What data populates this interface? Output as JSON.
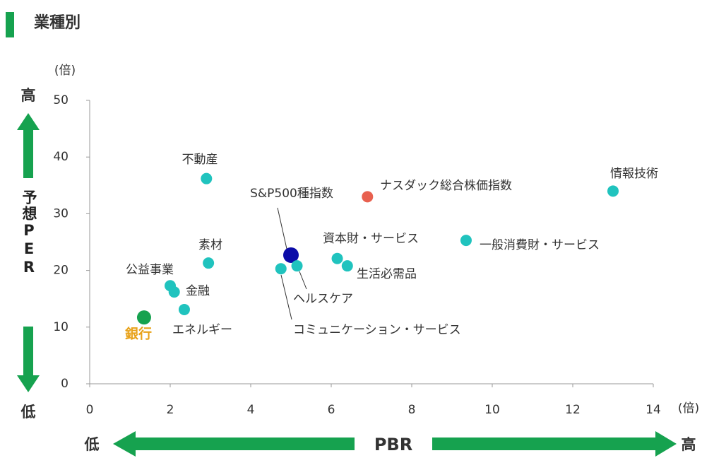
{
  "title": "業種別",
  "chart_data": {
    "type": "scatter",
    "y_unit": "(倍)",
    "x_unit": "(倍)",
    "y_label": "予想PER",
    "x_label": "PBR",
    "y_high": "高",
    "y_low": "低",
    "x_low": "低",
    "x_high": "高",
    "xlim": [
      0,
      14
    ],
    "xticks": [
      0,
      2,
      4,
      6,
      8,
      10,
      12,
      14
    ],
    "ylim": [
      0,
      50
    ],
    "yticks": [
      0,
      10,
      20,
      30,
      40,
      50
    ],
    "points": [
      {
        "label": "情報技術",
        "x": 13.0,
        "y": 34.0,
        "color": "#20c3be"
      },
      {
        "label": "ナスダック総合株価指数",
        "x": 6.9,
        "y": 33.0,
        "color": "#e8604f"
      },
      {
        "label": "不動産",
        "x": 2.9,
        "y": 36.2,
        "color": "#20c3be"
      },
      {
        "label": "S&P500種指数",
        "x": 5.0,
        "y": 22.7,
        "color": "#0b0ba8"
      },
      {
        "label": "一般消費財・サービス",
        "x": 9.35,
        "y": 25.3,
        "color": "#20c3be"
      },
      {
        "label": "資本財・サービス",
        "x": 6.15,
        "y": 22.1,
        "color": "#20c3be"
      },
      {
        "label": "生活必需品",
        "x": 6.4,
        "y": 20.8,
        "color": "#20c3be"
      },
      {
        "label": "素材",
        "x": 2.95,
        "y": 21.3,
        "color": "#20c3be"
      },
      {
        "label": "ヘルスケア",
        "x": 5.15,
        "y": 20.8,
        "color": "#20c3be"
      },
      {
        "label": "コミュニケーション・サービス",
        "x": 4.75,
        "y": 20.3,
        "color": "#20c3be"
      },
      {
        "label": "公益事業",
        "x": 2.0,
        "y": 17.3,
        "color": "#20c3be"
      },
      {
        "label": "金融",
        "x": 2.1,
        "y": 16.2,
        "color": "#20c3be"
      },
      {
        "label": "エネルギー",
        "x": 2.35,
        "y": 13.1,
        "color": "#20c3be"
      },
      {
        "label": "銀行",
        "x": 1.35,
        "y": 11.7,
        "color": "#16a24f"
      }
    ]
  }
}
